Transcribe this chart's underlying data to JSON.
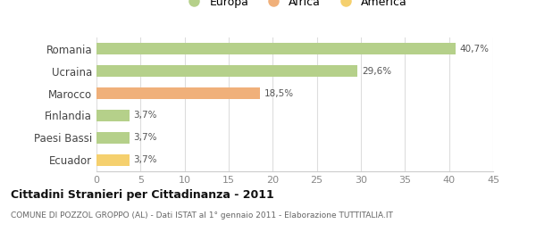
{
  "categories": [
    "Romania",
    "Ucraina",
    "Marocco",
    "Finlandia",
    "Paesi Bassi",
    "Ecuador"
  ],
  "values": [
    40.7,
    29.6,
    18.5,
    3.7,
    3.7,
    3.7
  ],
  "labels": [
    "40,7%",
    "29,6%",
    "18,5%",
    "3,7%",
    "3,7%",
    "3,7%"
  ],
  "bar_colors": [
    "#b5d08a",
    "#b5d08a",
    "#f0b07a",
    "#b5d08a",
    "#b5d08a",
    "#f5d06e"
  ],
  "legend_items": [
    {
      "label": "Europa",
      "color": "#b5d08a"
    },
    {
      "label": "Africa",
      "color": "#f0b07a"
    },
    {
      "label": "America",
      "color": "#f5d06e"
    }
  ],
  "xlim": [
    0,
    45
  ],
  "xticks": [
    0,
    5,
    10,
    15,
    20,
    25,
    30,
    35,
    40,
    45
  ],
  "title": "Cittadini Stranieri per Cittadinanza - 2011",
  "subtitle": "COMUNE DI POZZOL GROPPO (AL) - Dati ISTAT al 1° gennaio 2011 - Elaborazione TUTTITALIA.IT",
  "background_color": "#ffffff",
  "grid_color": "#dddddd",
  "bar_height": 0.52,
  "label_color": "#555555",
  "ytick_color": "#444444",
  "xtick_color": "#888888"
}
